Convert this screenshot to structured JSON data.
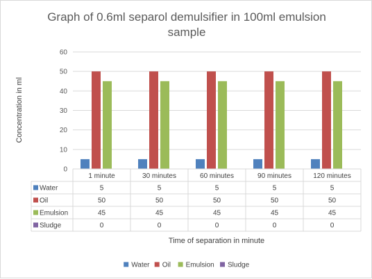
{
  "chart_data": {
    "type": "bar",
    "title_lines": [
      "Graph of 0.6ml separol demulsifier in 100ml emulsion",
      "sample"
    ],
    "xlabel": "Time of separation in minute",
    "ylabel": "Concentration in ml",
    "ylim": [
      0,
      60
    ],
    "yticks": [
      0,
      10,
      20,
      30,
      40,
      50,
      60
    ],
    "grid": true,
    "legend_position": "bottom",
    "data_table": true,
    "categories": [
      "1 minute",
      "30 minutes",
      "60 minutes",
      "90 minutes",
      "120 minutes"
    ],
    "series": [
      {
        "name": "Water",
        "color": "#4f81bd",
        "values": [
          5,
          5,
          5,
          5,
          5
        ]
      },
      {
        "name": "Oil",
        "color": "#c0504d",
        "values": [
          50,
          50,
          50,
          50,
          50
        ]
      },
      {
        "name": "Emulsion",
        "color": "#9bbb59",
        "values": [
          45,
          45,
          45,
          45,
          45
        ]
      },
      {
        "name": "Sludge",
        "color": "#8064a2",
        "values": [
          0,
          0,
          0,
          0,
          0
        ]
      }
    ]
  }
}
